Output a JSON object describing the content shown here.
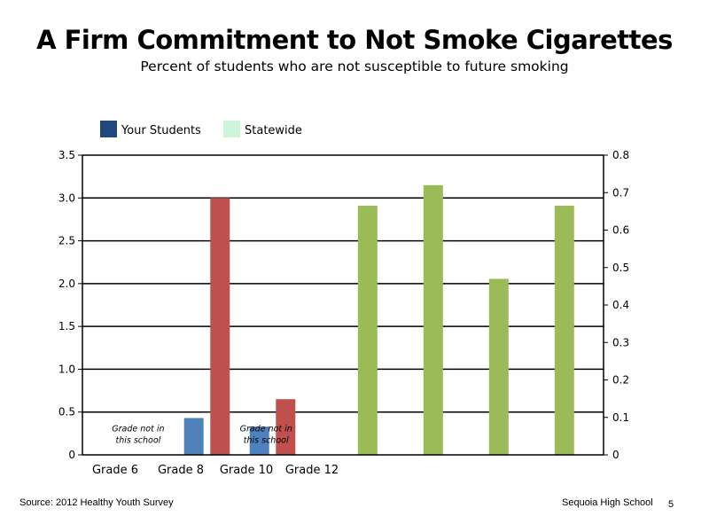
{
  "slide": {
    "title": "A Firm Commitment to Not Smoke Cigarettes",
    "subtitle": "Percent of students who are not susceptible to future smoking",
    "source": "Source: 2012 Healthy Youth Survey",
    "school": "Sequoia High School",
    "page_number": "5"
  },
  "chart_data": {
    "type": "bar",
    "title": "A Firm Commitment to Not Smoke Cigarettes",
    "subtitle": "Percent of students who are not susceptible to future smoking",
    "legend": {
      "position": "top-left",
      "entries": [
        {
          "label": "Your Students",
          "color": "#1f497d"
        },
        {
          "label": "Statewide",
          "color": "#ccf5d9"
        }
      ]
    },
    "categories": [
      "Grade 6",
      "Grade 8",
      "Grade 10",
      "Grade 12"
    ],
    "primary_axis": {
      "ticks": [
        "0",
        "0.5",
        "1.0",
        "1.5",
        "2.0",
        "2.5",
        "3.0",
        "3.5"
      ],
      "ylim": [
        0,
        3.5
      ]
    },
    "secondary_axis": {
      "ticks": [
        "0",
        "0.1",
        "0.2",
        "0.3",
        "0.4",
        "0.5",
        "0.6",
        "0.7",
        "0.8"
      ],
      "ylim": [
        0,
        0.8
      ]
    },
    "grid": true,
    "bars": [
      {
        "series": "blue",
        "slot": 3.1,
        "axis": "primary",
        "value": 0.43,
        "color": "#4f81bd"
      },
      {
        "series": "red",
        "slot": 3.9,
        "axis": "primary",
        "value": 3.0,
        "color": "#c0504d"
      },
      {
        "series": "blue",
        "slot": 5.1,
        "axis": "primary",
        "value": 0.33,
        "color": "#4f81bd"
      },
      {
        "series": "red",
        "slot": 5.9,
        "axis": "primary",
        "value": 0.65,
        "color": "#c0504d"
      },
      {
        "series": "green",
        "slot": 8.4,
        "axis": "secondary",
        "value": 0.665,
        "color": "#9bbb59"
      },
      {
        "series": "green",
        "slot": 10.4,
        "axis": "secondary",
        "value": 0.72,
        "color": "#9bbb59"
      },
      {
        "series": "green",
        "slot": 12.4,
        "axis": "secondary",
        "value": 0.47,
        "color": "#9bbb59"
      },
      {
        "series": "green",
        "slot": 14.4,
        "axis": "secondary",
        "value": 0.665,
        "color": "#9bbb59"
      }
    ],
    "annotations": [
      {
        "line1": "Grade not in",
        "line2": "this school",
        "slot": 1.7,
        "level": 0.42
      },
      {
        "line1": "Grade not in",
        "line2": "this school",
        "slot": 5.6,
        "level": 0.42
      }
    ]
  }
}
